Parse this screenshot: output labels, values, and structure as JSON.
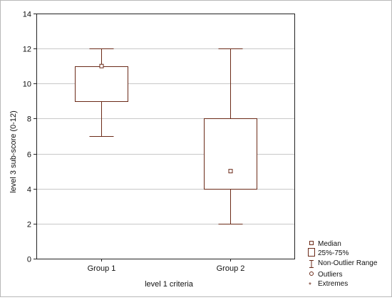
{
  "chart_data": {
    "type": "boxplot",
    "title": "",
    "xlabel": "level 1 criteria",
    "ylabel": "level 3 sub-score (0-12)",
    "ylim": [
      0,
      14
    ],
    "yticks": [
      0,
      2,
      4,
      6,
      8,
      10,
      12,
      14
    ],
    "grid": true,
    "categories": [
      "Group 1",
      "Group 2"
    ],
    "series": [
      {
        "category": "Group 1",
        "median": 11,
        "q1": 9,
        "q3": 11,
        "min": 7,
        "max": 12
      },
      {
        "category": "Group 2",
        "median": 5,
        "q1": 4,
        "q3": 8,
        "min": 2,
        "max": 12
      }
    ],
    "legend": {
      "placement": "bottom-right",
      "items": [
        "Median",
        "25%-75%",
        "Non-Outlier Range",
        "Outliers",
        "Extremes"
      ]
    },
    "colors": {
      "box": "#6b2a18",
      "grid": "#c8c8c8",
      "axis": "#222222"
    }
  }
}
